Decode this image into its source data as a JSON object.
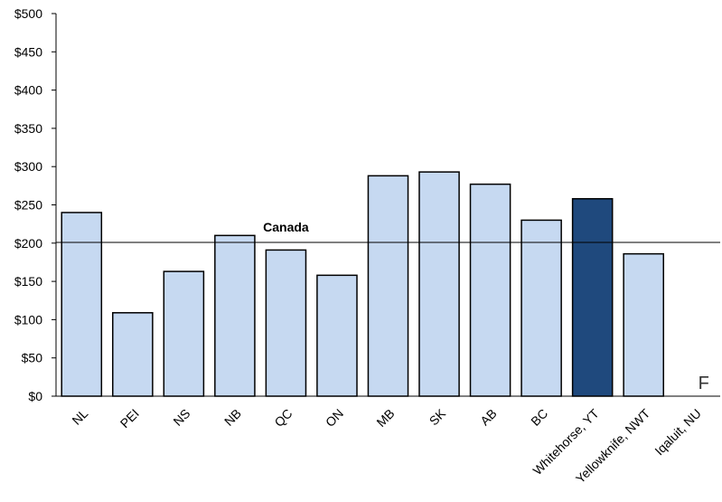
{
  "chart_data": {
    "type": "bar",
    "title": "",
    "xlabel": "",
    "ylabel": "",
    "ylim": [
      0,
      500
    ],
    "y_ticks": [
      "$0",
      "$50",
      "$100",
      "$150",
      "$200",
      "$250",
      "$300",
      "$350",
      "$400",
      "$450",
      "$500"
    ],
    "y_tick_values": [
      0,
      50,
      100,
      150,
      200,
      250,
      300,
      350,
      400,
      450,
      500
    ],
    "categories": [
      "NL",
      "PEI",
      "NS",
      "NB",
      "QC",
      "ON",
      "MB",
      "SK",
      "AB",
      "BC",
      "Whitehorse, YT",
      "Yellowknife, NWT",
      "Iqaluit, NU"
    ],
    "values": [
      240,
      109,
      163,
      210,
      191,
      158,
      288,
      293,
      277,
      230,
      258,
      186,
      null
    ],
    "highlight_category": "Whitehorse, YT",
    "reference_line": {
      "label": "Canada",
      "value": 201
    },
    "missing_marker": {
      "category": "Iqaluit, NU",
      "text": "F"
    },
    "grid": false,
    "colors": {
      "bar": "#c6d9f1",
      "highlight": "#1f497d",
      "outline": "#000000"
    }
  }
}
